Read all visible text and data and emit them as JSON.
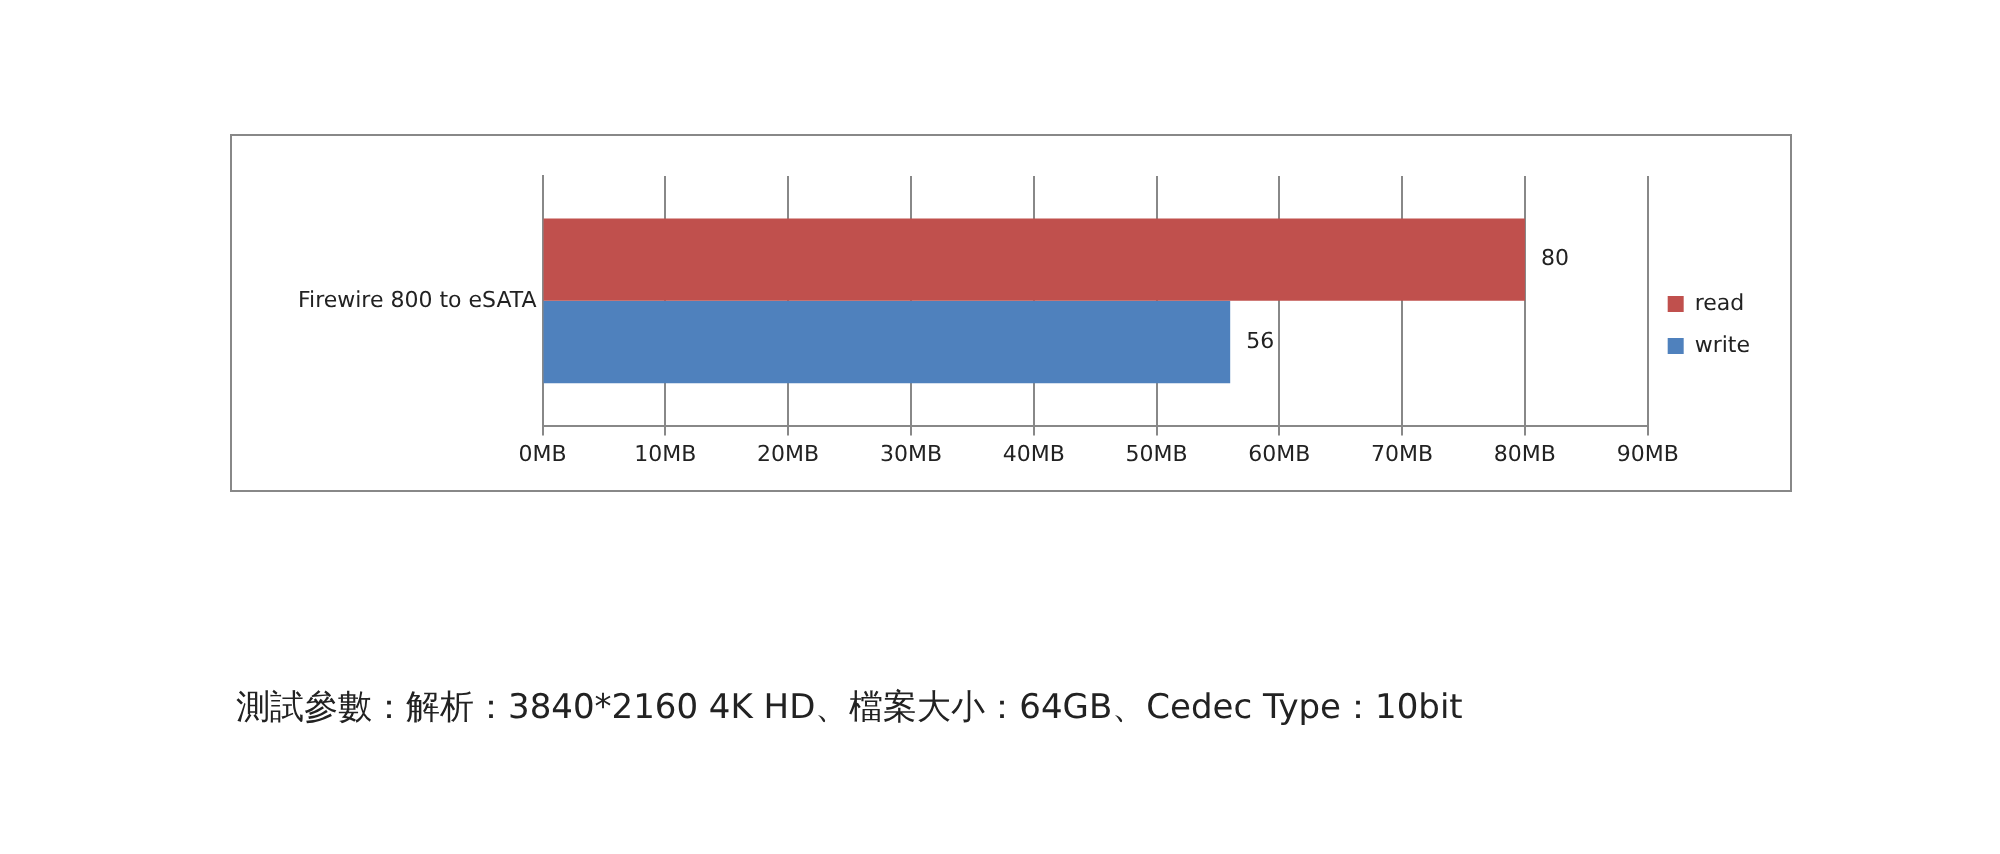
{
  "chart_data": {
    "type": "bar",
    "orientation": "horizontal",
    "categories": [
      "Firewire 800 to eSATA"
    ],
    "series": [
      {
        "name": "read",
        "color": "#c0504d",
        "values": [
          80
        ]
      },
      {
        "name": "write",
        "color": "#4f81bd",
        "values": [
          56
        ]
      }
    ],
    "xlim": [
      0,
      90
    ],
    "xticks": [
      {
        "value": 0,
        "label": "0MB"
      },
      {
        "value": 10,
        "label": "10MB"
      },
      {
        "value": 20,
        "label": "20MB"
      },
      {
        "value": 30,
        "label": "30MB"
      },
      {
        "value": 40,
        "label": "40MB"
      },
      {
        "value": 50,
        "label": "50MB"
      },
      {
        "value": 60,
        "label": "60MB"
      },
      {
        "value": 70,
        "label": "70MB"
      },
      {
        "value": 80,
        "label": "80MB"
      },
      {
        "value": 90,
        "label": "90MB"
      }
    ],
    "grid": "x",
    "legend": "right",
    "data_labels": true,
    "annotations": [
      "測試參數：解析：3840*2160 4K HD、檔案大小：64GB、Cedec Type：10bit"
    ]
  }
}
